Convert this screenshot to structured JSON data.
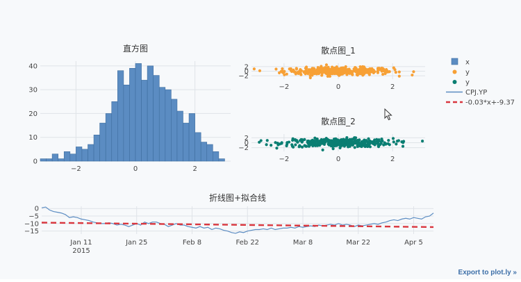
{
  "colors": {
    "histogram": "#5b8cc2",
    "histogram_edge": "#3f6e9f",
    "scatter1": "#f7a035",
    "scatter2": "#0a7e72",
    "line": "#5b8cc2",
    "fit": "#d9363e",
    "grid": "#dfe3e8"
  },
  "export_label": "Export to plot.ly »",
  "legend": [
    {
      "label": "x",
      "symbol": "square",
      "color": "#5b8cc2"
    },
    {
      "label": "y",
      "symbol": "dot",
      "color": "#f7a035"
    },
    {
      "label": "y",
      "symbol": "dot",
      "color": "#0a7e72"
    },
    {
      "label": "CPJ.YP",
      "symbol": "line",
      "color": "#5b8cc2"
    },
    {
      "label": "-0.03*x+-9.37",
      "symbol": "dash",
      "color": "#d9363e"
    }
  ],
  "chart_data": [
    {
      "type": "bar",
      "subtype": "histogram",
      "title": "直方图",
      "series_name": "x",
      "xlim": [
        -3.2,
        3.2
      ],
      "ylim": [
        0,
        42
      ],
      "xticks": [
        -2,
        0,
        2
      ],
      "yticks": [
        0,
        10,
        20,
        30,
        40
      ],
      "bin_start": -3.2,
      "bin_width": 0.2,
      "values": [
        1,
        1,
        3,
        1,
        4,
        3,
        6,
        5,
        7,
        11,
        16,
        20,
        25,
        38,
        32,
        39,
        41,
        34,
        40,
        36,
        31,
        30,
        26,
        21,
        16,
        20,
        12,
        8,
        7,
        4,
        1,
        0
      ]
    },
    {
      "type": "scatter",
      "title": "散点图_1",
      "series_name": "y",
      "xlim": [
        -3.2,
        3.2
      ],
      "ylim": [
        -3.5,
        3.5
      ],
      "xticks": [
        -2,
        0,
        2
      ],
      "yticks": [
        -2,
        0,
        2
      ],
      "n_points": 400,
      "x_spread": 1.0,
      "y_spread": 1.0
    },
    {
      "type": "scatter",
      "title": "散点图_2",
      "series_name": "y",
      "xlim": [
        -3.2,
        3.2
      ],
      "ylim": [
        -3.5,
        3.5
      ],
      "xticks": [
        -2,
        0,
        2
      ],
      "yticks": [
        -2,
        0,
        2
      ],
      "n_points": 400,
      "x_spread": 1.0,
      "y_spread": 1.0
    },
    {
      "type": "line",
      "title": "折线图+拟合线",
      "xlim": [
        "2015-01-01",
        "2015-04-10"
      ],
      "ylim": [
        -17,
        1.5
      ],
      "xticks": [
        {
          "date": "2015-01-11",
          "label": "Jan 11",
          "sub": "2015"
        },
        {
          "date": "2015-01-25",
          "label": "Jan 25"
        },
        {
          "date": "2015-02-08",
          "label": "Feb 8"
        },
        {
          "date": "2015-02-22",
          "label": "Feb 22"
        },
        {
          "date": "2015-03-08",
          "label": "Mar 8"
        },
        {
          "date": "2015-03-22",
          "label": "Mar 22"
        },
        {
          "date": "2015-04-05",
          "label": "Apr 5"
        }
      ],
      "yticks": [
        0,
        -5,
        -10,
        -15
      ],
      "series": [
        {
          "name": "CPJ.YP",
          "x_start": "2015-01-01",
          "values": [
            0.5,
            1,
            -1,
            -2,
            -2.5,
            -3,
            -4,
            -6,
            -5.5,
            -6,
            -7,
            -7.5,
            -8,
            -9,
            -9.5,
            -10,
            -10,
            -9.5,
            -10,
            -11,
            -10.5,
            -11,
            -12,
            -11,
            -10,
            -11,
            -9,
            -10,
            -9,
            -9,
            -10,
            -10.5,
            -12,
            -11,
            -10,
            -11,
            -11,
            -12,
            -12.5,
            -13,
            -12,
            -13,
            -12.5,
            -14,
            -13,
            -13.5,
            -14.5,
            -15,
            -16,
            -16.5,
            -15.5,
            -16,
            -15,
            -14.5,
            -14,
            -14,
            -13.5,
            -14,
            -13,
            -14,
            -13.5,
            -13,
            -13,
            -12.5,
            -13,
            -12,
            -12.5,
            -12,
            -11.5,
            -12,
            -11,
            -11.5,
            -11,
            -10.5,
            -11,
            -10,
            -11,
            -10.5,
            -11,
            -12,
            -11,
            -11.5,
            -11,
            -10.5,
            -10,
            -10.5,
            -9.5,
            -9,
            -8,
            -7.5,
            -8,
            -7,
            -6.5,
            -7,
            -6,
            -6.5,
            -7,
            -5.5,
            -5,
            -3
          ]
        },
        {
          "name": "-0.03*x+-9.37",
          "style": "dash",
          "x": [
            "2015-01-01",
            "2015-04-10"
          ],
          "values": [
            -9.37,
            -12.34
          ]
        }
      ]
    }
  ]
}
